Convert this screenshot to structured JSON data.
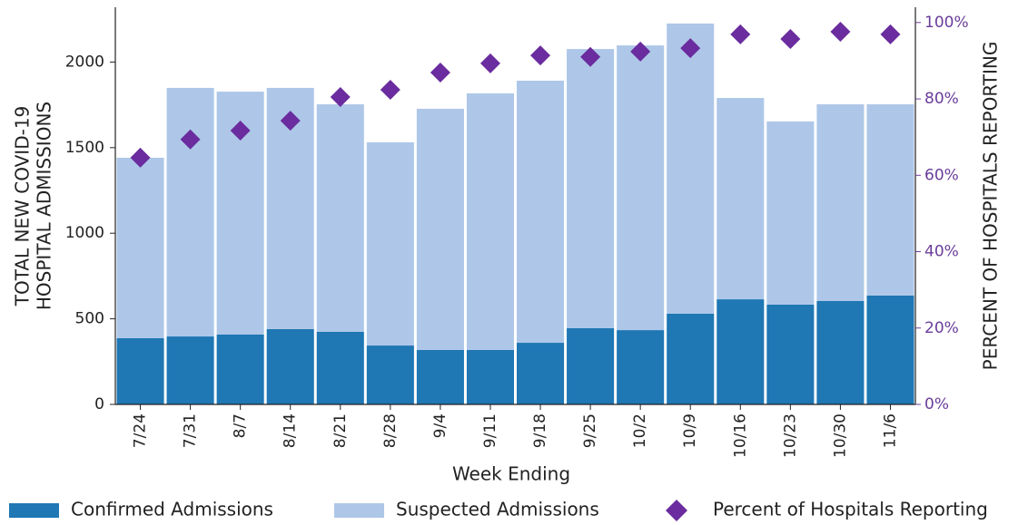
{
  "chart_data": {
    "type": "bar",
    "stacked": true,
    "categories": [
      "7/24",
      "7/31",
      "8/7",
      "8/14",
      "8/21",
      "8/28",
      "9/4",
      "9/11",
      "9/18",
      "9/25",
      "10/2",
      "10/9",
      "10/16",
      "10/23",
      "10/30",
      "11/6"
    ],
    "series": [
      {
        "name": "Confirmed Admissions",
        "color": "#1f77b4",
        "values": [
          387,
          397,
          408,
          440,
          424,
          344,
          318,
          318,
          360,
          445,
          434,
          530,
          614,
          583,
          604,
          636
        ]
      },
      {
        "name": "Suspected Admissions",
        "color": "#aec7e8",
        "values": [
          1054,
          1452,
          1419,
          1409,
          1329,
          1187,
          1409,
          1499,
          1531,
          1631,
          1663,
          1695,
          1176,
          1070,
          1149,
          1117
        ]
      },
      {
        "name": "Percent of Hospitals Reporting",
        "color": "#6a2c9e",
        "type": "scatter",
        "marker": "diamond",
        "axis": "y2",
        "values": [
          64.6,
          69.4,
          71.7,
          74.3,
          80.5,
          82.4,
          86.9,
          89.3,
          91.4,
          91.0,
          92.4,
          93.3,
          96.9,
          95.7,
          97.6,
          96.9
        ]
      }
    ],
    "x_label": "Week Ending",
    "y_label": [
      "TOTAL NEW COVID-19",
      "HOSPITAL ADMISSIONS"
    ],
    "y2_label": "PERCENT OF HOSPITALS REPORTING",
    "ylim": [
      0,
      2320
    ],
    "yticks": [
      0,
      500,
      1000,
      1500,
      2000
    ],
    "y2lim": [
      0,
      104
    ],
    "y2ticks": [
      {
        "value": 0,
        "label": "0%"
      },
      {
        "value": 20,
        "label": "20%"
      },
      {
        "value": 40,
        "label": "40%"
      },
      {
        "value": 60,
        "label": "60%"
      },
      {
        "value": 80,
        "label": "80%"
      },
      {
        "value": 100,
        "label": "100%"
      }
    ],
    "y2_color": "#6a3d9a",
    "legend": "bottom"
  }
}
